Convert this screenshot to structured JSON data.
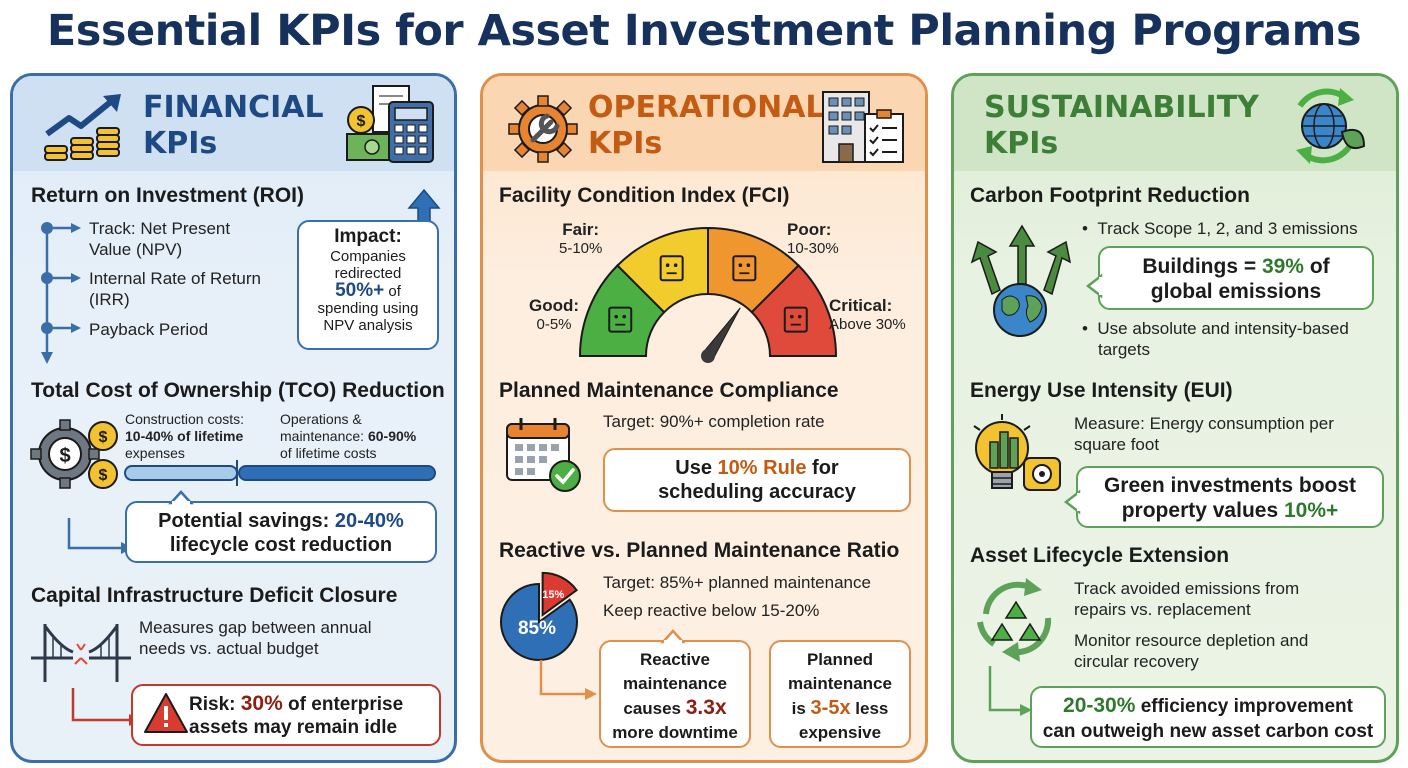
{
  "title": "Essential KPIs for Asset Investment Planning Programs",
  "financial": {
    "header": [
      "FINANCIAL",
      "KPIs"
    ],
    "roi": {
      "title": "Return on Investment (ROI)",
      "items": [
        "Track: Net Present",
        "Value (NPV)",
        "Internal Rate of Return",
        "(IRR)",
        "Payback Period"
      ],
      "impact": {
        "label": "Impact:",
        "line1": "Companies",
        "line2": "redirected",
        "pct": "50%+",
        "of": " of",
        "line4": "spending using",
        "line5": "NPV analysis"
      }
    },
    "tco": {
      "title": "Total Cost of Ownership (TCO) Reduction",
      "construction": {
        "line1": "Construction costs:",
        "range": "10-40%",
        "rest": " of lifetime",
        "line3": "expenses"
      },
      "operations": {
        "line1": "Operations &",
        "line2a": "maintenance: ",
        "range": "60-90%",
        "line3": "of lifetime costs"
      },
      "savings": {
        "line1a": "Potential savings: ",
        "range": "20-40%",
        "line2": "lifecycle cost reduction"
      }
    },
    "deficit": {
      "title": "Capital Infrastructure Deficit Closure",
      "desc1": "Measures gap between annual",
      "desc2": "needs vs. actual budget",
      "risk": {
        "label": "Risk: ",
        "pct": "30%",
        "rest": " of enterprise",
        "line2": "assets may remain idle"
      }
    }
  },
  "operational": {
    "header": [
      "OPERATIONAL",
      "KPIs"
    ],
    "fci": {
      "title": "Facility Condition Index (FCI)",
      "gauge_value_pct": 25,
      "bands": [
        {
          "name": "Good:",
          "range": "0-5%",
          "color": "#4caf43"
        },
        {
          "name": "Fair:",
          "range": "5-10%",
          "color": "#f2cc2d"
        },
        {
          "name": "Poor:",
          "range": "10-30%",
          "color": "#f0962f"
        },
        {
          "name": "Critical:",
          "range": "Above 30%",
          "color": "#e04a3a"
        }
      ]
    },
    "pmc": {
      "title": "Planned Maintenance Compliance",
      "target": "Target: 90%+ completion rate",
      "rule": {
        "a": "Use ",
        "hl": "10% Rule",
        "b": " for",
        "line2": "scheduling accuracy"
      }
    },
    "ratio": {
      "title": "Reactive vs. Planned Maintenance Ratio",
      "target": "Target: 85%+ planned maintenance",
      "keep": "Keep reactive below 15-20%",
      "pie": {
        "planned_pct": 85,
        "reactive_pct": 15,
        "planned_label": "85%",
        "reactive_label": "15%",
        "planned_color": "#2f6fb5",
        "reactive_color": "#d93b30"
      },
      "reactive": {
        "line1": "Reactive",
        "line2": "maintenance",
        "line3a": "causes ",
        "hl": "3.3x",
        "line4": "more downtime"
      },
      "planned": {
        "line1": "Planned",
        "line2": "maintenance",
        "line3a": "is ",
        "hl": "3-5x",
        "line3b": " less",
        "line4": "expensive"
      }
    }
  },
  "sustainability": {
    "header": [
      "SUSTAINABILITY",
      "KPIs"
    ],
    "carbon": {
      "title": "Carbon Footprint Reduction",
      "bullet1": "Track Scope 1, 2, and 3 emissions",
      "callout": {
        "a": "Buildings = ",
        "hl": "39%",
        "b": " of",
        "line2": "global emissions"
      },
      "bullet2a": "Use absolute and intensity-based",
      "bullet2b": "targets"
    },
    "eui": {
      "title": "Energy Use Intensity (EUI)",
      "desc1": "Measure: Energy consumption per",
      "desc2": "square foot",
      "callout": {
        "line1": "Green investments boost",
        "line2a": "property values ",
        "hl": "10%+"
      }
    },
    "lifecycle": {
      "title": "Asset Lifecycle Extension",
      "desc1": "Track avoided emissions from",
      "desc2": "repairs vs. replacement",
      "desc3": "Monitor resource depletion and",
      "desc4": "circular recovery",
      "callout": {
        "hl": "20-30%",
        "line1b": " efficiency improvement",
        "line2": "can outweigh new asset carbon cost"
      }
    }
  }
}
